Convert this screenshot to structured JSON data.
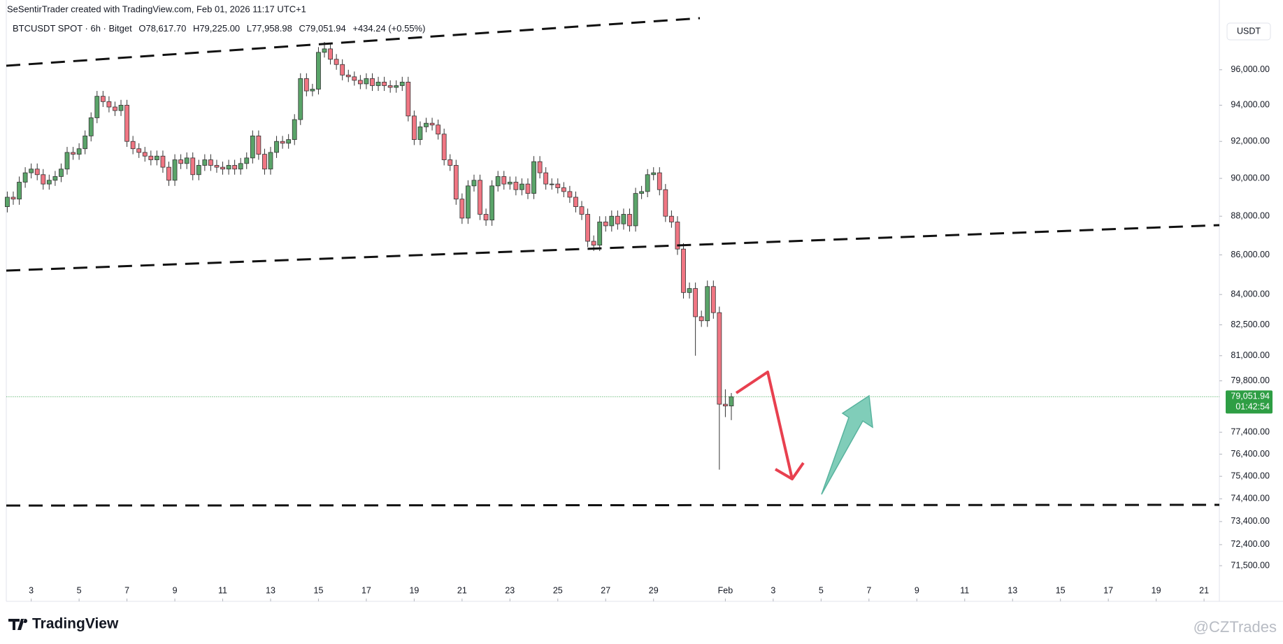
{
  "header": "SeSentirTrader created with TradingView.com, Feb 01, 2026 11:17 UTC+1",
  "chart_data": {
    "type": "candlestick",
    "symbol": "BTCUSDT SPOT · 6h · Bitget",
    "ohlc_labels": [
      "O78,617.70",
      "H79,225.00",
      "L77,958.98",
      "C79,051.94"
    ],
    "change_label": "+434.24 (+0.55%)",
    "currency": "USDT",
    "x": [
      2,
      2.25,
      2.5,
      2.75,
      3,
      3.25,
      3.5,
      3.75,
      4,
      4.25,
      4.5,
      4.75,
      5,
      5.25,
      5.5,
      5.75,
      6,
      6.25,
      6.5,
      6.75,
      7,
      7.25,
      7.5,
      7.75,
      8,
      8.25,
      8.5,
      8.75,
      9,
      9.25,
      9.5,
      9.75,
      10,
      10.25,
      10.5,
      10.75,
      11,
      11.25,
      11.5,
      11.75,
      12,
      12.25,
      12.5,
      12.75,
      13,
      13.25,
      13.5,
      13.75,
      14,
      14.25,
      14.5,
      14.75,
      15,
      15.25,
      15.5,
      15.75,
      16,
      16.25,
      16.5,
      16.75,
      17,
      17.25,
      17.5,
      17.75,
      18,
      18.25,
      18.5,
      18.75,
      19,
      19.25,
      19.5,
      19.75,
      20,
      20.25,
      20.5,
      20.75,
      21,
      21.25,
      21.5,
      21.75,
      22,
      22.25,
      22.5,
      22.75,
      23,
      23.25,
      23.5,
      23.75,
      24,
      24.25,
      24.5,
      24.75,
      25,
      25.25,
      25.5,
      25.75,
      26,
      26.25,
      26.5,
      26.75,
      27,
      27.25,
      27.5,
      27.75,
      28,
      28.25,
      28.5,
      28.75,
      29,
      29.25,
      29.5,
      29.75,
      30,
      30.25,
      30.5,
      30.75,
      31,
      31.25,
      31.5,
      31.75,
      32,
      32.25
    ],
    "open": [
      88500,
      89000,
      88900,
      89800,
      90300,
      90500,
      90200,
      89700,
      89900,
      90100,
      90500,
      91400,
      91300,
      91600,
      92300,
      93300,
      94500,
      94200,
      93900,
      93700,
      94000,
      92000,
      91600,
      91400,
      91200,
      91000,
      91200,
      90600,
      89900,
      91000,
      90800,
      91100,
      90200,
      90700,
      91000,
      90700,
      90600,
      90500,
      90700,
      90500,
      90800,
      91100,
      92300,
      91300,
      90500,
      91400,
      92000,
      91900,
      92100,
      93200,
      95500,
      94800,
      94900,
      97000,
      97200,
      96600,
      96300,
      95700,
      95600,
      95400,
      95200,
      95500,
      95100,
      95300,
      95100,
      95000,
      95100,
      95300,
      93400,
      92100,
      92800,
      93000,
      92900,
      92400,
      91000,
      90700,
      88900,
      87900,
      89600,
      89900,
      88100,
      87800,
      89600,
      90100,
      89700,
      89800,
      89400,
      89700,
      89200,
      90900,
      90300,
      89700,
      89700,
      89500,
      89300,
      89000,
      88500,
      88100,
      86700,
      86500,
      87700,
      87500,
      88000,
      87600,
      88100,
      87500,
      89200,
      89300,
      90200,
      90300,
      89400,
      88000,
      87700,
      86300,
      84100,
      84300,
      82900,
      82700,
      84400,
      83100,
      78700,
      78617.7
    ],
    "high": [
      89300,
      89300,
      90100,
      90600,
      90800,
      90800,
      90500,
      90200,
      90400,
      90800,
      91700,
      91700,
      91900,
      92600,
      93600,
      94800,
      94800,
      94500,
      94200,
      94300,
      94300,
      92300,
      91900,
      91700,
      91500,
      91500,
      91500,
      90900,
      91300,
      91300,
      91400,
      91400,
      91000,
      91300,
      91300,
      91000,
      90900,
      91000,
      91000,
      91100,
      91400,
      92600,
      92600,
      91600,
      91700,
      92300,
      92300,
      92400,
      93500,
      95800,
      95800,
      95200,
      97300,
      97600,
      97500,
      96900,
      96600,
      96000,
      95900,
      95700,
      95800,
      95800,
      95600,
      95600,
      95400,
      95400,
      95600,
      95600,
      93700,
      93100,
      93300,
      93300,
      93200,
      92700,
      91300,
      91000,
      89200,
      89900,
      90200,
      90200,
      88400,
      89900,
      90400,
      90400,
      90100,
      90100,
      90000,
      90000,
      91200,
      91200,
      90600,
      90000,
      90000,
      89800,
      89600,
      89300,
      88800,
      88400,
      87000,
      88000,
      88000,
      88300,
      88300,
      88400,
      88400,
      89500,
      89600,
      90500,
      90600,
      90600,
      89700,
      88300,
      88000,
      86600,
      84600,
      84600,
      83200,
      84700,
      84700,
      83400,
      79400,
      79225
    ],
    "low": [
      88200,
      88600,
      88600,
      89500,
      90000,
      89900,
      89400,
      89400,
      89600,
      89800,
      90200,
      91000,
      91000,
      91300,
      92000,
      93000,
      93900,
      93600,
      93400,
      93400,
      91700,
      91300,
      91100,
      90900,
      90700,
      90700,
      90300,
      89600,
      89600,
      90500,
      90500,
      89900,
      89900,
      90400,
      90400,
      90300,
      90200,
      90200,
      90200,
      90200,
      90500,
      90800,
      91000,
      90200,
      90200,
      91100,
      91600,
      91600,
      91800,
      92900,
      94500,
      94500,
      94600,
      96700,
      96300,
      96000,
      95400,
      95300,
      95100,
      94900,
      94900,
      94800,
      94800,
      94800,
      94700,
      94700,
      94800,
      93100,
      91800,
      91800,
      92500,
      92600,
      92100,
      90700,
      90400,
      88600,
      87600,
      87600,
      89300,
      87800,
      87500,
      87500,
      89300,
      89400,
      89400,
      89100,
      89100,
      88900,
      88900,
      90000,
      89400,
      89400,
      89200,
      89000,
      88700,
      88200,
      87800,
      86400,
      86200,
      86200,
      87200,
      87200,
      87300,
      87300,
      87200,
      87200,
      88900,
      89000,
      89900,
      89100,
      87700,
      87400,
      86000,
      83800,
      83800,
      81000,
      82400,
      82400,
      82800,
      75700,
      78100,
      77958.98
    ],
    "close": [
      89000,
      88900,
      89800,
      90300,
      90500,
      90200,
      89700,
      89900,
      90100,
      90500,
      91400,
      91300,
      91600,
      92300,
      93300,
      94500,
      94200,
      93900,
      93700,
      94000,
      92000,
      91600,
      91400,
      91200,
      91000,
      91200,
      90600,
      89900,
      91000,
      90800,
      91100,
      90200,
      90700,
      91000,
      90700,
      90600,
      90500,
      90700,
      90500,
      90800,
      91100,
      92300,
      91300,
      90500,
      91400,
      92000,
      91900,
      92100,
      93200,
      95500,
      94800,
      94900,
      97000,
      97200,
      96600,
      96300,
      95700,
      95600,
      95400,
      95200,
      95500,
      95100,
      95300,
      95100,
      95000,
      95100,
      95300,
      93400,
      92100,
      92800,
      93000,
      92900,
      92400,
      91000,
      90700,
      88900,
      87900,
      89600,
      89900,
      88100,
      87800,
      89600,
      90100,
      89700,
      89800,
      89400,
      89700,
      89200,
      90900,
      90300,
      89700,
      89700,
      89500,
      89300,
      89000,
      88500,
      88100,
      86700,
      86500,
      87700,
      87500,
      88000,
      87600,
      88100,
      87500,
      89200,
      89300,
      90200,
      90300,
      89400,
      88000,
      87700,
      86300,
      84100,
      84300,
      82900,
      82700,
      84400,
      83100,
      78700,
      78617.7,
      79051.94
    ],
    "up_color": "#5aa469",
    "down_color": "#f07683",
    "log_scale": true,
    "xlim": [
      1.97,
      52.64
    ],
    "xticks": [
      3,
      5,
      7,
      9,
      11,
      13,
      15,
      17,
      19,
      21,
      23,
      25,
      27,
      29,
      {
        "value": 32,
        "label": "Feb"
      },
      {
        "value": 34,
        "label": "3"
      },
      {
        "value": 36,
        "label": "5"
      },
      {
        "value": 38,
        "label": "7"
      },
      {
        "value": 40,
        "label": "9"
      },
      {
        "value": 42,
        "label": "11"
      },
      {
        "value": 44,
        "label": "13"
      },
      {
        "value": 46,
        "label": "15"
      },
      {
        "value": 48,
        "label": "17"
      },
      {
        "value": 50,
        "label": "19"
      },
      {
        "value": 52,
        "label": "21"
      }
    ],
    "ylim": [
      70850,
      99000
    ],
    "yticks": [
      {
        "value": 96000,
        "label": "96,000.00"
      },
      {
        "value": 94000,
        "label": "94,000.00"
      },
      {
        "value": 92000,
        "label": "92,000.00"
      },
      {
        "value": 90000,
        "label": "90,000.00"
      },
      {
        "value": 88000,
        "label": "88,000.00"
      },
      {
        "value": 86000,
        "label": "86,000.00"
      },
      {
        "value": 84000,
        "label": "84,000.00"
      },
      {
        "value": 82500,
        "label": "82,500.00"
      },
      {
        "value": 81000,
        "label": "81,000.00"
      },
      {
        "value": 79800,
        "label": "79,800.00"
      },
      {
        "value": 77400,
        "label": "77,400.00"
      },
      {
        "value": 76400,
        "label": "76,400.00"
      },
      {
        "value": 75400,
        "label": "75,400.00"
      },
      {
        "value": 74400,
        "label": "74,400.00"
      },
      {
        "value": 73400,
        "label": "73,400.00"
      },
      {
        "value": 72400,
        "label": "72,400.00"
      },
      {
        "value": 71500,
        "label": "71,500.00"
      }
    ],
    "last_price_label": "79,051.94",
    "countdown": "01:42:54",
    "last_price_color": "#2e9e44"
  },
  "footer": {
    "logo": "TradingView",
    "watermark": "@CZTrades"
  }
}
